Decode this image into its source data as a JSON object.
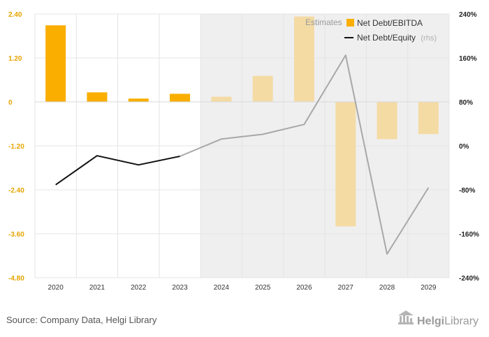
{
  "chart_data": {
    "type": "bar",
    "categories": [
      "2020",
      "2021",
      "2022",
      "2023",
      "2024",
      "2025",
      "2026",
      "2027",
      "2028",
      "2029"
    ],
    "estimates_from": "2024",
    "estimates_label": "Estimates",
    "series": [
      {
        "name": "Net Debt/EBITDA",
        "type": "bar",
        "axis": "left",
        "values": [
          2.09,
          0.26,
          0.09,
          0.22,
          0.14,
          0.71,
          2.33,
          -3.4,
          -1.02,
          -0.88
        ],
        "color": "#f9ae00",
        "estimate_color": "#f4dba4"
      },
      {
        "name": "Net Debt/Equity",
        "name_suffix": "(rhs)",
        "type": "line",
        "axis": "right",
        "values": [
          -70.8,
          -18.0,
          -34.7,
          -19.1,
          12.3,
          21.0,
          39.0,
          165.0,
          -197.0,
          -76.0
        ],
        "color": "#111111",
        "estimate_color": "#a8a8a8"
      }
    ],
    "y_left": {
      "min": -4.8,
      "max": 2.4,
      "ticks": [
        2.4,
        1.2,
        0,
        -1.2,
        -2.4,
        -3.6,
        -4.8
      ],
      "tick_labels": [
        "2.40",
        "1.20",
        "0",
        "-1.20",
        "-2.40",
        "-3.60",
        "-4.80"
      ],
      "color": "#e6a400"
    },
    "y_right": {
      "min": -240,
      "max": 240,
      "ticks": [
        240,
        160,
        80,
        0,
        -80,
        -160,
        -240
      ],
      "tick_labels": [
        "240%",
        "160%",
        "80%",
        "0%",
        "-80%",
        "-160%",
        "-240%"
      ]
    },
    "grid": true,
    "legend_position": "top-right"
  },
  "footer": {
    "source": "Source: Company Data, Helgi Library",
    "logo_part1": "Helgi",
    "logo_part2": "Library"
  }
}
